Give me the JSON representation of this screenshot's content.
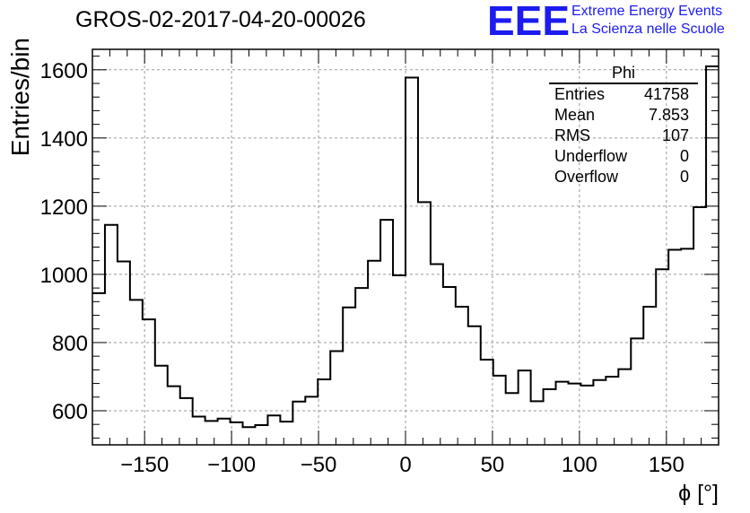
{
  "title": "GROS-02-2017-04-20-00026",
  "logo": {
    "mark": "EEE",
    "line1": "Extreme Energy Events",
    "line2": "La Scienza nelle Scuole",
    "color": "#1c1cf0"
  },
  "stats_box": {
    "name": "Phi",
    "rows": [
      {
        "label": "Entries",
        "value": "41758"
      },
      {
        "label": "Mean",
        "value": "7.853"
      },
      {
        "label": "RMS",
        "value": "107"
      },
      {
        "label": "Underflow",
        "value": "0"
      },
      {
        "label": "Overflow",
        "value": "0"
      }
    ]
  },
  "chart_data": {
    "type": "bar",
    "histogram": true,
    "xlabel": "ϕ [°]",
    "ylabel": "Entries/bin",
    "xlim": [
      -180,
      180
    ],
    "ylim": [
      500,
      1660
    ],
    "bin_width": 7.2,
    "x_ticks": [
      -150,
      -100,
      -50,
      0,
      50,
      100,
      150
    ],
    "x_tick_labels": [
      "−150",
      "−100",
      "−50",
      "0",
      "50",
      "100",
      "150"
    ],
    "y_ticks": [
      600,
      800,
      1000,
      1200,
      1400,
      1600
    ],
    "y_tick_labels": [
      "600",
      "800",
      "1000",
      "1200",
      "1400",
      "1600"
    ],
    "grid": true,
    "values": [
      945,
      1145,
      1038,
      925,
      868,
      732,
      672,
      637,
      583,
      570,
      577,
      566,
      552,
      558,
      586,
      568,
      627,
      641,
      692,
      775,
      903,
      960,
      1040,
      1160,
      997,
      1577,
      1212,
      1030,
      963,
      905,
      848,
      750,
      703,
      652,
      718,
      628,
      663,
      685,
      680,
      674,
      690,
      700,
      722,
      812,
      905,
      1015,
      1072,
      1075,
      1197,
      1610
    ]
  }
}
